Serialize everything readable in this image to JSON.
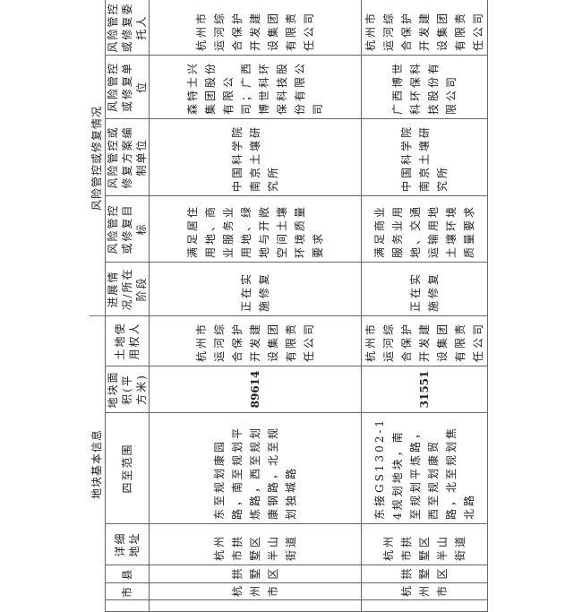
{
  "sections": {
    "basic_info": "地块基本信息",
    "risk_control": "风险管控或修复情况"
  },
  "headers": {
    "city": "市",
    "county": "县",
    "address": "详细地址",
    "boundaries": "四至范围",
    "area": "地块面积(平方米)",
    "land_user": "土地使用权人",
    "progress": "进展情况/所在阶段",
    "target": "风险管控或修复目标",
    "plan_unit": "风险管控或修复方案编制单位",
    "exec_unit": "风险管控或修复单位",
    "client": "风险管控或修复委托人"
  },
  "rows": [
    {
      "city": "杭州市",
      "county": "拱墅区",
      "address": "杭州市拱墅区半山街道",
      "boundaries": "东至规划康园路，南至规划平炼路，西至规划康钢路，北至规划独城路",
      "area": "89614",
      "land_user": "杭州市运河综合保护开发建设集团有限责任公司",
      "progress": "正在实施修复",
      "target": "满足居住用地、商业服务业用地、绿地与开敞空间土壤环境质量要求",
      "plan_unit": "中国科学院南京土壤研究所",
      "exec_unit": "森特士兴集团股份有限公司；广西博世科环保科技股份有限公司",
      "client": "杭州市运河综合保护开发建设集团有限责任公司"
    },
    {
      "city": "杭州市",
      "county": "拱墅区",
      "address": "杭州市拱墅区半山街道",
      "boundaries": "东接GS1302-14规划地块，南至规划平炼路，西至规划康贸路，北至规划焦北路",
      "area": "31551",
      "land_user": "杭州市运河综合保护开发建设集团有限责任公司",
      "progress": "正在实施修复",
      "target": "满足商业服务业用地、交通运输用地土壤环境质量要求",
      "plan_unit": "中国科学院南京土壤研究所",
      "exec_unit": "广西博世科环保科技股份有限公司",
      "client": "杭州市运河综合保护开发建设集团有限责任公司"
    }
  ]
}
